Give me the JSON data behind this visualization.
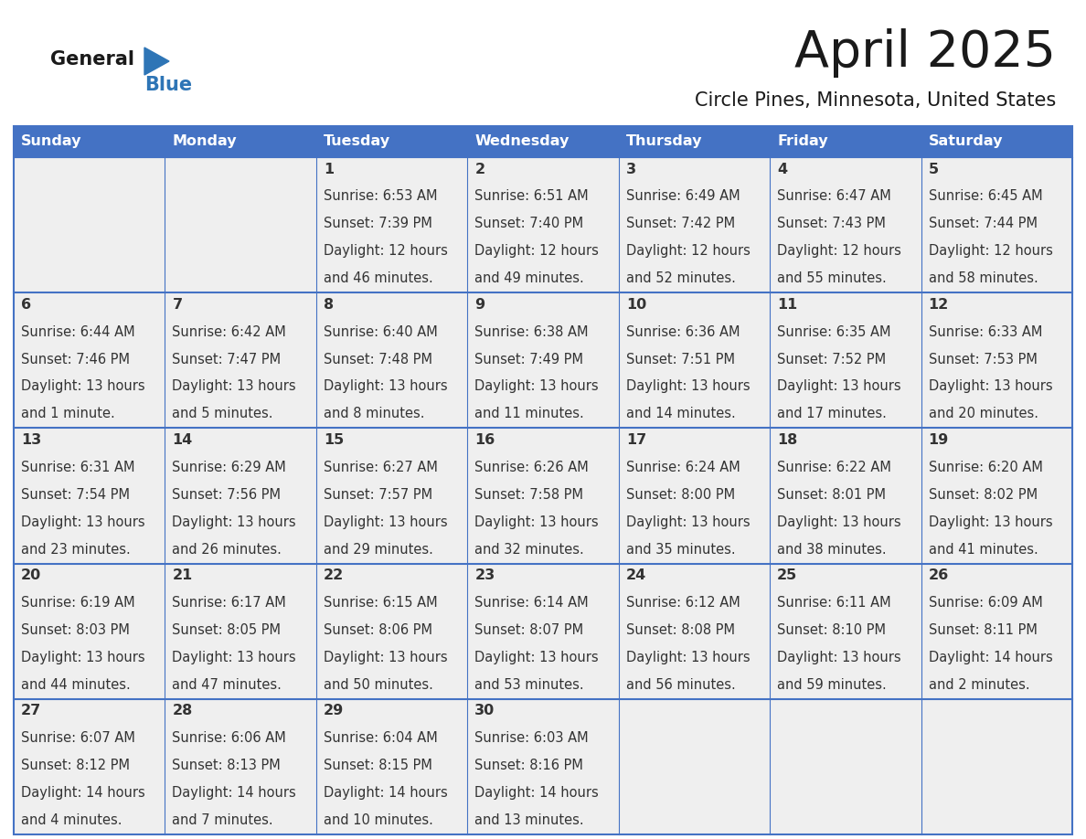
{
  "title": "April 2025",
  "subtitle": "Circle Pines, Minnesota, United States",
  "header_bg": "#4472C4",
  "header_text_color": "#FFFFFF",
  "cell_bg": "#EFEFEF",
  "border_color": "#4472C4",
  "day_names": [
    "Sunday",
    "Monday",
    "Tuesday",
    "Wednesday",
    "Thursday",
    "Friday",
    "Saturday"
  ],
  "title_color": "#1a1a1a",
  "subtitle_color": "#1a1a1a",
  "day_number_color": "#333333",
  "cell_text_color": "#333333",
  "logo_general_color": "#1a1a1a",
  "logo_blue_color": "#2e75b6",
  "calendar": [
    [
      {
        "day": "",
        "sunrise": "",
        "sunset": "",
        "daylight": ""
      },
      {
        "day": "",
        "sunrise": "",
        "sunset": "",
        "daylight": ""
      },
      {
        "day": "1",
        "sunrise": "6:53 AM",
        "sunset": "7:39 PM",
        "daylight": "12 hours",
        "daylight2": "and 46 minutes."
      },
      {
        "day": "2",
        "sunrise": "6:51 AM",
        "sunset": "7:40 PM",
        "daylight": "12 hours",
        "daylight2": "and 49 minutes."
      },
      {
        "day": "3",
        "sunrise": "6:49 AM",
        "sunset": "7:42 PM",
        "daylight": "12 hours",
        "daylight2": "and 52 minutes."
      },
      {
        "day": "4",
        "sunrise": "6:47 AM",
        "sunset": "7:43 PM",
        "daylight": "12 hours",
        "daylight2": "and 55 minutes."
      },
      {
        "day": "5",
        "sunrise": "6:45 AM",
        "sunset": "7:44 PM",
        "daylight": "12 hours",
        "daylight2": "and 58 minutes."
      }
    ],
    [
      {
        "day": "6",
        "sunrise": "6:44 AM",
        "sunset": "7:46 PM",
        "daylight": "13 hours",
        "daylight2": "and 1 minute."
      },
      {
        "day": "7",
        "sunrise": "6:42 AM",
        "sunset": "7:47 PM",
        "daylight": "13 hours",
        "daylight2": "and 5 minutes."
      },
      {
        "day": "8",
        "sunrise": "6:40 AM",
        "sunset": "7:48 PM",
        "daylight": "13 hours",
        "daylight2": "and 8 minutes."
      },
      {
        "day": "9",
        "sunrise": "6:38 AM",
        "sunset": "7:49 PM",
        "daylight": "13 hours",
        "daylight2": "and 11 minutes."
      },
      {
        "day": "10",
        "sunrise": "6:36 AM",
        "sunset": "7:51 PM",
        "daylight": "13 hours",
        "daylight2": "and 14 minutes."
      },
      {
        "day": "11",
        "sunrise": "6:35 AM",
        "sunset": "7:52 PM",
        "daylight": "13 hours",
        "daylight2": "and 17 minutes."
      },
      {
        "day": "12",
        "sunrise": "6:33 AM",
        "sunset": "7:53 PM",
        "daylight": "13 hours",
        "daylight2": "and 20 minutes."
      }
    ],
    [
      {
        "day": "13",
        "sunrise": "6:31 AM",
        "sunset": "7:54 PM",
        "daylight": "13 hours",
        "daylight2": "and 23 minutes."
      },
      {
        "day": "14",
        "sunrise": "6:29 AM",
        "sunset": "7:56 PM",
        "daylight": "13 hours",
        "daylight2": "and 26 minutes."
      },
      {
        "day": "15",
        "sunrise": "6:27 AM",
        "sunset": "7:57 PM",
        "daylight": "13 hours",
        "daylight2": "and 29 minutes."
      },
      {
        "day": "16",
        "sunrise": "6:26 AM",
        "sunset": "7:58 PM",
        "daylight": "13 hours",
        "daylight2": "and 32 minutes."
      },
      {
        "day": "17",
        "sunrise": "6:24 AM",
        "sunset": "8:00 PM",
        "daylight": "13 hours",
        "daylight2": "and 35 minutes."
      },
      {
        "day": "18",
        "sunrise": "6:22 AM",
        "sunset": "8:01 PM",
        "daylight": "13 hours",
        "daylight2": "and 38 minutes."
      },
      {
        "day": "19",
        "sunrise": "6:20 AM",
        "sunset": "8:02 PM",
        "daylight": "13 hours",
        "daylight2": "and 41 minutes."
      }
    ],
    [
      {
        "day": "20",
        "sunrise": "6:19 AM",
        "sunset": "8:03 PM",
        "daylight": "13 hours",
        "daylight2": "and 44 minutes."
      },
      {
        "day": "21",
        "sunrise": "6:17 AM",
        "sunset": "8:05 PM",
        "daylight": "13 hours",
        "daylight2": "and 47 minutes."
      },
      {
        "day": "22",
        "sunrise": "6:15 AM",
        "sunset": "8:06 PM",
        "daylight": "13 hours",
        "daylight2": "and 50 minutes."
      },
      {
        "day": "23",
        "sunrise": "6:14 AM",
        "sunset": "8:07 PM",
        "daylight": "13 hours",
        "daylight2": "and 53 minutes."
      },
      {
        "day": "24",
        "sunrise": "6:12 AM",
        "sunset": "8:08 PM",
        "daylight": "13 hours",
        "daylight2": "and 56 minutes."
      },
      {
        "day": "25",
        "sunrise": "6:11 AM",
        "sunset": "8:10 PM",
        "daylight": "13 hours",
        "daylight2": "and 59 minutes."
      },
      {
        "day": "26",
        "sunrise": "6:09 AM",
        "sunset": "8:11 PM",
        "daylight": "14 hours",
        "daylight2": "and 2 minutes."
      }
    ],
    [
      {
        "day": "27",
        "sunrise": "6:07 AM",
        "sunset": "8:12 PM",
        "daylight": "14 hours",
        "daylight2": "and 4 minutes."
      },
      {
        "day": "28",
        "sunrise": "6:06 AM",
        "sunset": "8:13 PM",
        "daylight": "14 hours",
        "daylight2": "and 7 minutes."
      },
      {
        "day": "29",
        "sunrise": "6:04 AM",
        "sunset": "8:15 PM",
        "daylight": "14 hours",
        "daylight2": "and 10 minutes."
      },
      {
        "day": "30",
        "sunrise": "6:03 AM",
        "sunset": "8:16 PM",
        "daylight": "14 hours",
        "daylight2": "and 13 minutes."
      },
      {
        "day": "",
        "sunrise": "",
        "sunset": "",
        "daylight": "",
        "daylight2": ""
      },
      {
        "day": "",
        "sunrise": "",
        "sunset": "",
        "daylight": "",
        "daylight2": ""
      },
      {
        "day": "",
        "sunrise": "",
        "sunset": "",
        "daylight": "",
        "daylight2": ""
      }
    ]
  ]
}
